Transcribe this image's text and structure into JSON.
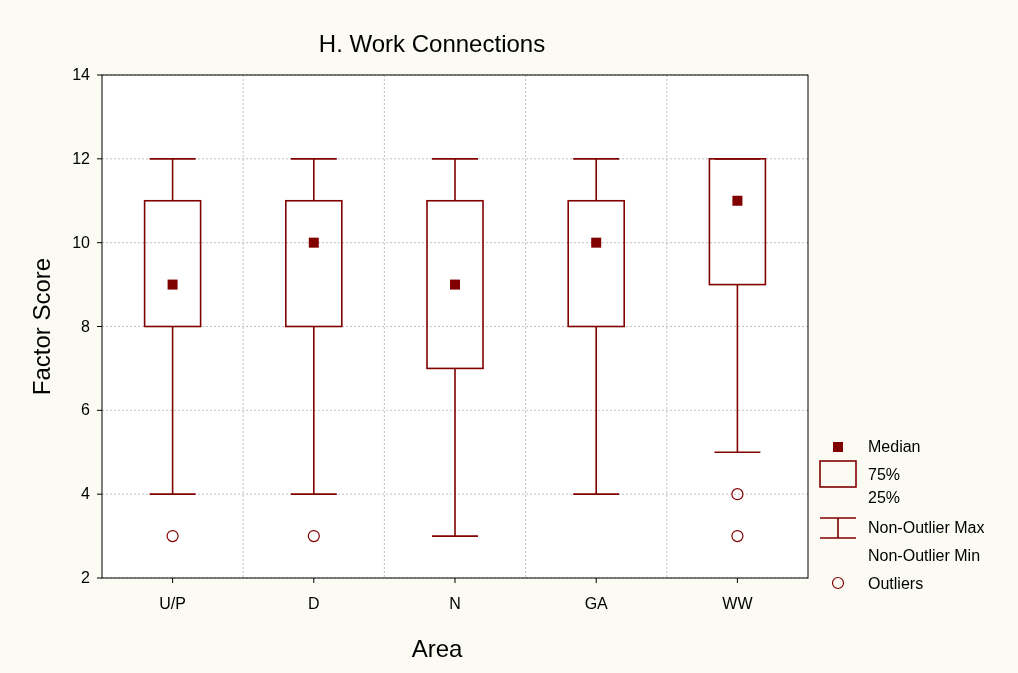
{
  "chart_data": {
    "type": "box",
    "title": "H. Work Connections",
    "xlabel": "Area",
    "ylabel": "Factor Score",
    "categories": [
      "U/P",
      "D",
      "N",
      "GA",
      "WW"
    ],
    "color": "#800000",
    "boxes": [
      {
        "low": 4,
        "q1": 8,
        "median": 9,
        "q3": 11,
        "high": 12,
        "outliers": [
          3
        ]
      },
      {
        "low": 4,
        "q1": 8,
        "median": 10,
        "q3": 11,
        "high": 12,
        "outliers": [
          3
        ]
      },
      {
        "low": 3,
        "q1": 7,
        "median": 9,
        "q3": 11,
        "high": 12
      },
      {
        "low": 4,
        "q1": 8,
        "median": 10,
        "q3": 11,
        "high": 12
      },
      {
        "low": 5,
        "q1": 9,
        "median": 11,
        "q3": 12,
        "high": 12,
        "outliers": [
          4,
          3
        ]
      }
    ],
    "ylim": [
      2,
      14
    ],
    "yticks": [
      2,
      4,
      6,
      8,
      10,
      12,
      14
    ],
    "grid": true,
    "annotations": [
      "Median",
      "75%",
      "25%",
      "Non-Outlier Max",
      "Non-Outlier Min",
      "Outliers"
    ]
  }
}
